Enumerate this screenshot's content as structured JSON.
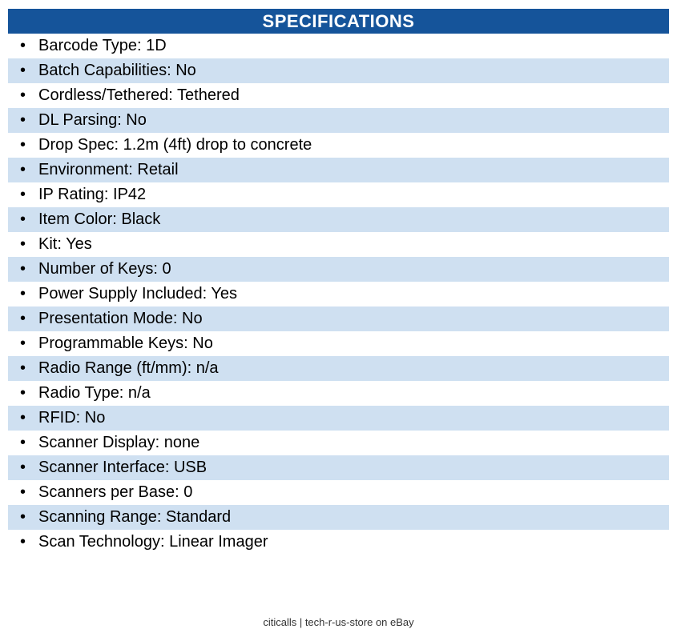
{
  "colors": {
    "header_bg": "#15549A",
    "row_alt_bg": "#CFE0F1",
    "header_text": "#FFFFFF",
    "row_text": "#000000"
  },
  "header": {
    "title": "SPECIFICATIONS"
  },
  "specs": {
    "bullet_icon": "•",
    "items": [
      {
        "label": "Barcode Type",
        "value": "1D"
      },
      {
        "label": "Batch Capabilities",
        "value": "No"
      },
      {
        "label": "Cordless/Tethered",
        "value": "Tethered"
      },
      {
        "label": "DL Parsing",
        "value": "No"
      },
      {
        "label": "Drop Spec",
        "value": "1.2m (4ft) drop to concrete"
      },
      {
        "label": "Environment",
        "value": "Retail"
      },
      {
        "label": "IP Rating",
        "value": "IP42"
      },
      {
        "label": "Item Color",
        "value": "Black"
      },
      {
        "label": "Kit",
        "value": "Yes"
      },
      {
        "label": "Number of Keys",
        "value": "0"
      },
      {
        "label": "Power Supply Included",
        "value": "Yes"
      },
      {
        "label": "Presentation Mode",
        "value": "No"
      },
      {
        "label": "Programmable Keys",
        "value": "No"
      },
      {
        "label": "Radio Range (ft/mm)",
        "value": "n/a"
      },
      {
        "label": "Radio Type",
        "value": "n/a"
      },
      {
        "label": "RFID",
        "value": "No"
      },
      {
        "label": "Scanner Display",
        "value": "none"
      },
      {
        "label": "Scanner Interface",
        "value": "USB"
      },
      {
        "label": "Scanners per Base",
        "value": "0"
      },
      {
        "label": "Scanning Range",
        "value": "Standard"
      },
      {
        "label": "Scan Technology",
        "value": "Linear Imager"
      }
    ]
  },
  "footer": {
    "text": "citicalls | tech-r-us-store on eBay"
  }
}
